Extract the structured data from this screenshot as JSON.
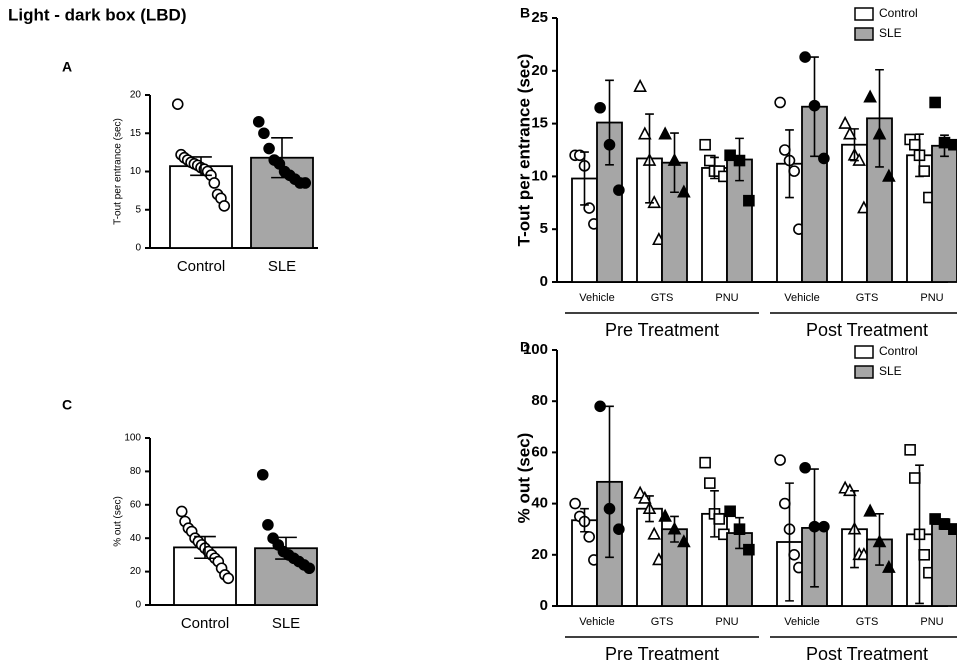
{
  "title": "Light - dark box (LBD)",
  "chart_data": [
    {
      "type": "bar",
      "panel": "A",
      "ylabel": "T-out per entrance (sec)",
      "categories": [
        "Control",
        "SLE"
      ],
      "values": [
        10.7,
        11.8
      ],
      "errors": [
        1.2,
        2.6
      ],
      "colors": [
        "#ffffff",
        "#a6a6a6"
      ],
      "markers": [
        "circle",
        "circle"
      ],
      "points": [
        [
          18.8,
          12.2,
          11.8,
          11.5,
          11.2,
          11,
          10.8,
          10.5,
          10.3,
          10,
          9.5,
          8.5,
          7,
          6.5,
          5.5
        ],
        [
          16.5,
          15,
          13,
          11.5,
          11,
          10,
          9.5,
          9,
          8.5,
          8.5
        ]
      ],
      "ylim": [
        0,
        20
      ],
      "yticks": [
        0,
        5,
        10,
        15,
        20
      ]
    },
    {
      "type": "bar",
      "panel": "B",
      "ylabel": "T-out per entrance (sec)",
      "categories": [
        "Vehicle",
        "GTS",
        "PNU",
        "Vehicle",
        "GTS",
        "PNU"
      ],
      "groups": [
        "Pre Treatment",
        "Post Treatment"
      ],
      "markers": [
        "circle",
        "triangle",
        "square",
        "circle",
        "triangle",
        "square"
      ],
      "legend": "upper right",
      "series": [
        {
          "name": "Control",
          "color": "#ffffff",
          "values": [
            9.8,
            11.7,
            10.8,
            11.2,
            13.0,
            12.0
          ],
          "errors": [
            2.5,
            4.2,
            1,
            3.2,
            1.5,
            2
          ],
          "points": [
            [
              12,
              12,
              11,
              7,
              5.5
            ],
            [
              18.5,
              14,
              11.5,
              7.5,
              4
            ],
            [
              13,
              11.5,
              10.5,
              10.5,
              10
            ],
            [
              17,
              12.5,
              11.5,
              10.5,
              5
            ],
            [
              15,
              14,
              12,
              11.5,
              7
            ],
            [
              13.5,
              13,
              12,
              10.5,
              8
            ]
          ]
        },
        {
          "name": "SLE",
          "color": "#a6a6a6",
          "values": [
            15.1,
            11.3,
            11.6,
            16.6,
            15.5,
            12.9
          ],
          "errors": [
            4,
            2.8,
            2,
            4.7,
            4.6,
            1
          ],
          "points": [
            [
              16.5,
              13,
              8.7
            ],
            [
              14,
              11.5,
              8.5
            ],
            [
              12,
              11.5,
              7.7
            ],
            [
              21.3,
              16.7,
              11.7
            ],
            [
              17.5,
              14,
              10
            ],
            [
              17,
              13.2,
              13
            ]
          ]
        }
      ],
      "ylim": [
        0,
        25
      ],
      "yticks": [
        0,
        5,
        10,
        15,
        20,
        25
      ]
    },
    {
      "type": "bar",
      "panel": "C",
      "ylabel": "% out (sec)",
      "categories": [
        "Control",
        "SLE"
      ],
      "values": [
        34.5,
        34.0
      ],
      "errors": [
        6.5,
        6.5
      ],
      "colors": [
        "#ffffff",
        "#a6a6a6"
      ],
      "markers": [
        "circle",
        "circle"
      ],
      "points": [
        [
          56,
          50,
          46,
          44,
          40,
          38,
          36,
          34,
          32,
          30,
          28,
          26,
          22,
          18,
          16
        ],
        [
          78,
          48,
          40,
          36,
          32,
          30,
          28,
          26,
          24,
          22
        ]
      ],
      "ylim": [
        0,
        100
      ],
      "yticks": [
        0,
        20,
        40,
        60,
        80,
        100
      ]
    },
    {
      "type": "bar",
      "panel": "D",
      "ylabel": "% out (sec)",
      "categories": [
        "Vehicle",
        "GTS",
        "PNU",
        "Vehicle",
        "GTS",
        "PNU"
      ],
      "groups": [
        "Pre Treatment",
        "Post Treatment"
      ],
      "markers": [
        "circle",
        "triangle",
        "square",
        "circle",
        "triangle",
        "square"
      ],
      "legend": "upper right",
      "series": [
        {
          "name": "Control",
          "color": "#ffffff",
          "values": [
            33.5,
            38,
            36,
            25,
            30,
            28
          ],
          "errors": [
            4.5,
            5,
            9,
            23,
            15,
            27
          ],
          "points": [
            [
              40,
              35,
              33,
              27,
              18
            ],
            [
              44,
              42,
              38,
              28,
              18
            ],
            [
              56,
              48,
              36,
              34,
              28
            ],
            [
              57,
              40,
              30,
              20,
              15
            ],
            [
              46,
              45,
              30,
              20,
              20
            ],
            [
              61,
              50,
              28,
              20,
              13
            ]
          ]
        },
        {
          "name": "SLE",
          "color": "#a6a6a6",
          "values": [
            48.5,
            30,
            28.5,
            30.5,
            26,
            32
          ],
          "errors": [
            29.5,
            5,
            6,
            23,
            10,
            2
          ],
          "points": [
            [
              78,
              38,
              30
            ],
            [
              35,
              30,
              25
            ],
            [
              37,
              30,
              22
            ],
            [
              54,
              31,
              31
            ],
            [
              37,
              25,
              15
            ],
            [
              34,
              32,
              30
            ]
          ]
        }
      ],
      "ylim": [
        0,
        100
      ],
      "yticks": [
        0,
        20,
        40,
        60,
        80,
        100
      ]
    }
  ]
}
